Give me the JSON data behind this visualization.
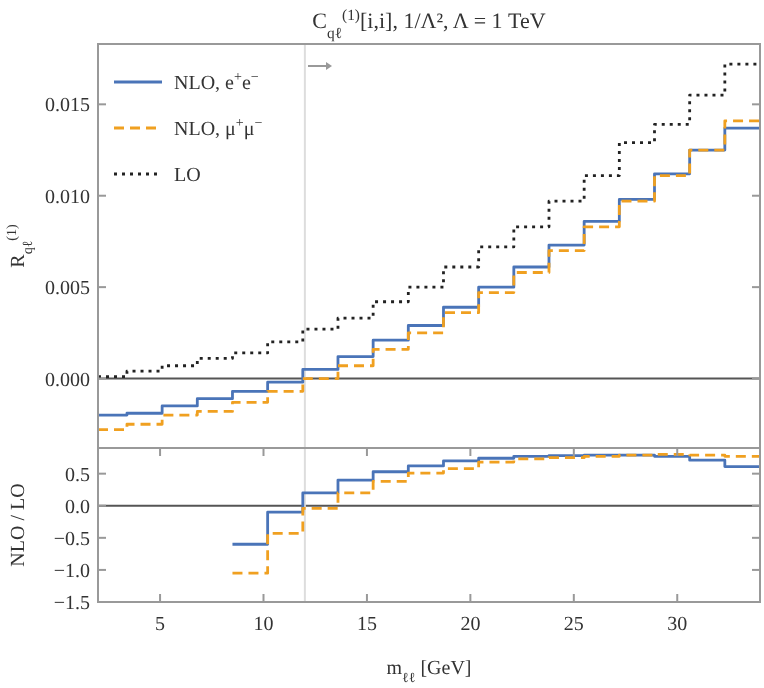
{
  "chart_data": [
    {
      "type": "step",
      "title": "C$_{qℓ}$$^{(1)}$[i,i], 1/Λ², Λ = 1 TeV",
      "ylabel": "R$_{qℓ}$$^{(1)}$",
      "legend": "top left",
      "tick_labels": "y",
      "x": [
        2,
        3.4,
        5.1,
        6.8,
        8.5,
        10.2,
        11.9,
        13.6,
        15.3,
        17,
        18.7,
        20.4,
        22.1,
        23.8,
        25.5,
        27.2,
        28.9,
        30.6,
        32.3,
        34
      ],
      "series": [
        {
          "name": "NLO, e$^{+}$e$^{−}$",
          "color": "#4a74b8",
          "line_style": "solid",
          "values": [
            -0.002,
            -0.0019,
            -0.0015,
            -0.0011,
            -0.0007,
            -0.0002,
            0.0005,
            0.0012,
            0.0021,
            0.0029,
            0.0039,
            0.005,
            0.0061,
            0.0073,
            0.0086,
            0.0098,
            0.0112,
            0.0125,
            0.0137,
            0.0137
          ]
        },
        {
          "name": "NLO, μ$^{+}$μ$^{−}$",
          "color": "#f0a020",
          "line_style": "dashed",
          "values": [
            -0.0028,
            -0.0025,
            -0.002,
            -0.0018,
            -0.0013,
            -0.0007,
            0.0,
            0.0007,
            0.0016,
            0.0025,
            0.0036,
            0.0047,
            0.0058,
            0.007,
            0.0083,
            0.0097,
            0.0111,
            0.0125,
            0.0141,
            0.0141
          ]
        },
        {
          "name": "LO",
          "color": "#222222",
          "line_style": "dotted",
          "values": [
            0.0001,
            0.0004,
            0.0007,
            0.0011,
            0.0014,
            0.002,
            0.0027,
            0.0033,
            0.0042,
            0.005,
            0.0061,
            0.0072,
            0.0083,
            0.0097,
            0.0111,
            0.0129,
            0.0139,
            0.0155,
            0.0172,
            0.0172
          ]
        }
      ],
      "xlim": [
        2,
        34
      ],
      "ylim": [
        -0.0038,
        0.0183
      ],
      "yticks": [
        {
          "value": 0,
          "label": "0.000"
        },
        {
          "value": 0.005,
          "label": "0.005"
        },
        {
          "value": 0.01,
          "label": "0.010"
        },
        {
          "value": 0.015,
          "label": "0.015"
        }
      ],
      "ref_lines": [
        {
          "axis": "y",
          "value": 0,
          "color": "#555555"
        },
        {
          "axis": "x",
          "value": 12,
          "color": "#dddddd"
        }
      ]
    },
    {
      "type": "step",
      "xlabel": "m$_{ℓℓ}$ [GeV]",
      "ylabel": "NLO / LO",
      "x": [
        8.5,
        10.2,
        11.9,
        13.6,
        15.3,
        17,
        18.7,
        20.4,
        22.1,
        23.8,
        25.5,
        27.2,
        28.9,
        30.6,
        32.3,
        34
      ],
      "series": [
        {
          "color": "#4a74b8",
          "line_style": "solid",
          "values": [
            -0.6,
            -0.1,
            0.2,
            0.4,
            0.53,
            0.62,
            0.7,
            0.74,
            0.77,
            0.78,
            0.79,
            0.79,
            0.77,
            0.71,
            0.61,
            0.61
          ]
        },
        {
          "color": "#f0a020",
          "line_style": "dashed",
          "values": [
            -1.05,
            -0.43,
            -0.04,
            0.2,
            0.38,
            0.51,
            0.58,
            0.68,
            0.73,
            0.75,
            0.77,
            0.79,
            0.8,
            0.79,
            0.77,
            0.77
          ]
        }
      ],
      "xlim": [
        2,
        34
      ],
      "ylim": [
        -1.5,
        0.9
      ],
      "xticks": [
        5,
        10,
        15,
        20,
        25,
        30
      ],
      "yticks": [
        {
          "value": -1.5,
          "label": "−1.5"
        },
        {
          "value": -1,
          "label": "−1.0"
        },
        {
          "value": -0.5,
          "label": "−0.5"
        },
        {
          "value": 0,
          "label": "0.0"
        },
        {
          "value": 0.5,
          "label": "0.5"
        }
      ],
      "ref_lines": [
        {
          "axis": "y",
          "value": 0,
          "color": "#555555"
        },
        {
          "axis": "x",
          "value": 12,
          "color": "#dddddd"
        }
      ]
    }
  ]
}
